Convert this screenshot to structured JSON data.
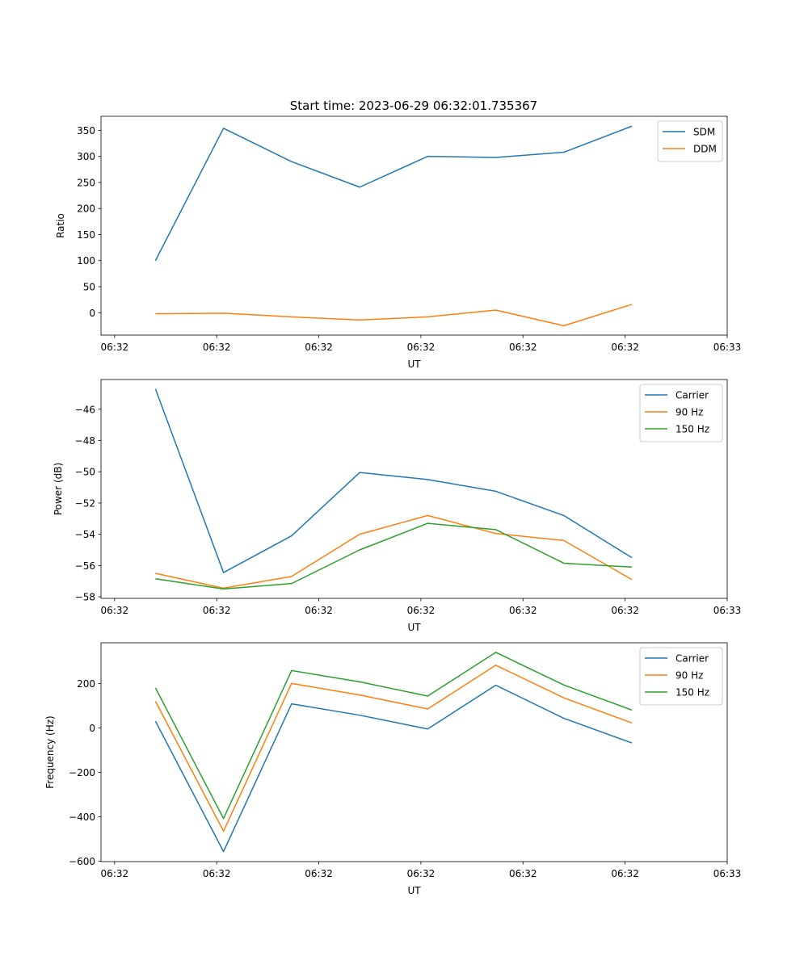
{
  "chart_data": [
    {
      "type": "line",
      "title": "Start time: 2023-06-29 06:32:01.735367",
      "xlabel": "UT",
      "ylabel": "Ratio",
      "x": [
        1,
        2,
        3,
        4,
        5,
        6,
        7,
        8
      ],
      "xlim": [
        0.2,
        9.4
      ],
      "xticks": [
        0.4,
        1.9,
        3.4,
        4.9,
        6.4,
        7.9,
        9.4
      ],
      "xticklabels": [
        "06:32",
        "06:32",
        "06:32",
        "06:32",
        "06:32",
        "06:32",
        "06:33"
      ],
      "ylim": [
        -43,
        377
      ],
      "yticks": [
        0,
        50,
        100,
        150,
        200,
        250,
        300,
        350
      ],
      "yticklabels": [
        "0",
        "50",
        "100",
        "150",
        "200",
        "250",
        "300",
        "350"
      ],
      "legend_position": "top-right",
      "grid": false,
      "series": [
        {
          "name": "SDM",
          "color": "#1f77b4",
          "values": [
            100,
            354,
            290,
            241,
            300,
            298,
            308,
            358
          ]
        },
        {
          "name": "DDM",
          "color": "#ff7f0e",
          "values": [
            -2,
            -1,
            -8,
            -14,
            -8,
            5,
            -25,
            16
          ]
        }
      ]
    },
    {
      "type": "line",
      "title": "",
      "xlabel": "UT",
      "ylabel": "Power (dB)",
      "x": [
        1,
        2,
        3,
        4,
        5,
        6,
        7,
        8
      ],
      "xlim": [
        0.2,
        9.4
      ],
      "xticks": [
        0.4,
        1.9,
        3.4,
        4.9,
        6.4,
        7.9,
        9.4
      ],
      "xticklabels": [
        "06:32",
        "06:32",
        "06:32",
        "06:32",
        "06:32",
        "06:32",
        "06:33"
      ],
      "ylim": [
        -58.1,
        -44.1
      ],
      "yticks": [
        -58,
        -56,
        -54,
        -52,
        -50,
        -48,
        -46
      ],
      "yticklabels": [
        "−58",
        "−56",
        "−54",
        "−52",
        "−50",
        "−48",
        "−46"
      ],
      "legend_position": "top-right",
      "grid": false,
      "series": [
        {
          "name": "Carrier",
          "color": "#1f77b4",
          "values": [
            -44.7,
            -56.45,
            -54.1,
            -50.05,
            -50.5,
            -51.25,
            -52.8,
            -55.5
          ]
        },
        {
          "name": "90 Hz",
          "color": "#ff7f0e",
          "values": [
            -56.5,
            -57.45,
            -56.7,
            -54.0,
            -52.8,
            -53.95,
            -54.4,
            -56.9
          ]
        },
        {
          "name": "150 Hz",
          "color": "#2ca02c",
          "values": [
            -56.85,
            -57.5,
            -57.15,
            -55.0,
            -53.3,
            -53.7,
            -55.85,
            -56.1
          ]
        }
      ]
    },
    {
      "type": "line",
      "title": "",
      "xlabel": "UT",
      "ylabel": "Frequency (Hz)",
      "x": [
        1,
        2,
        3,
        4,
        5,
        6,
        7,
        8
      ],
      "xlim": [
        0.2,
        9.4
      ],
      "xticks": [
        0.4,
        1.9,
        3.4,
        4.9,
        6.4,
        7.9,
        9.4
      ],
      "xticklabels": [
        "06:32",
        "06:32",
        "06:32",
        "06:32",
        "06:32",
        "06:32",
        "06:33"
      ],
      "ylim": [
        -602,
        383
      ],
      "yticks": [
        -600,
        -400,
        -200,
        0,
        200
      ],
      "yticklabels": [
        "−600",
        "−400",
        "−200",
        "0",
        "200"
      ],
      "legend_position": "top-right",
      "grid": false,
      "series": [
        {
          "name": "Carrier",
          "color": "#1f77b4",
          "values": [
            30,
            -557,
            108,
            57,
            -5,
            192,
            43,
            -68
          ]
        },
        {
          "name": "90 Hz",
          "color": "#ff7f0e",
          "values": [
            120,
            -465,
            200,
            148,
            85,
            282,
            135,
            22
          ]
        },
        {
          "name": "150 Hz",
          "color": "#2ca02c",
          "values": [
            180,
            -408,
            258,
            207,
            143,
            340,
            193,
            80
          ]
        }
      ]
    }
  ]
}
